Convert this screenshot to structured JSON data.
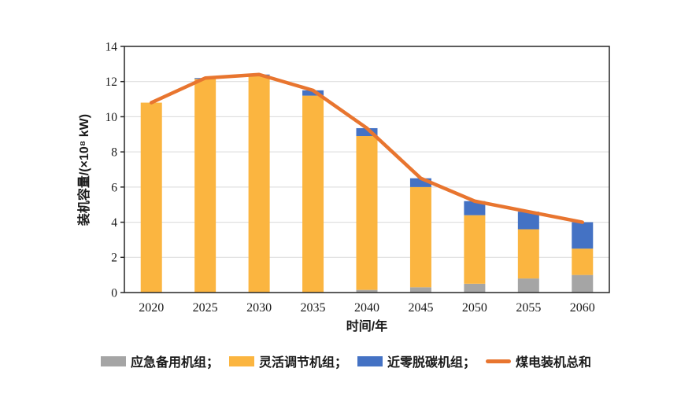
{
  "figure": {
    "background": "#ffffff",
    "frame_color": "#262626",
    "grid_color": "#d9d9d9",
    "text_color": "#1a1a1a"
  },
  "legend": {
    "position": "bottom-center",
    "items": [
      {
        "label": "应急备用机组；",
        "marker": "square",
        "color": "#A5A5A5"
      },
      {
        "label": "灵活调节机组；",
        "marker": "square",
        "color": "#FBB540"
      },
      {
        "label": "近零脱碳机组；",
        "marker": "square",
        "color": "#4472C4"
      },
      {
        "label": "煤电装机总和",
        "marker": "line",
        "color": "#E8752F"
      }
    ]
  },
  "chart_data": {
    "type": "bar",
    "subtype": "stacked-bars-with-total-line",
    "title": "",
    "xlabel": "时间/年",
    "ylabel": "装机容量/(×10⁸ kW)",
    "categories": [
      "2020",
      "2025",
      "2030",
      "2035",
      "2040",
      "2045",
      "2050",
      "2055",
      "2060"
    ],
    "series": [
      {
        "name": "应急备用机组",
        "type": "bar",
        "color": "#A5A5A5",
        "values": [
          0,
          0,
          0,
          0,
          0.15,
          0.3,
          0.5,
          0.8,
          1.0
        ]
      },
      {
        "name": "灵活调节机组",
        "type": "bar",
        "color": "#FBB540",
        "values": [
          10.8,
          12.15,
          12.35,
          11.2,
          8.75,
          5.7,
          3.9,
          2.8,
          1.5
        ]
      },
      {
        "name": "近零脱碳机组",
        "type": "bar",
        "color": "#4472C4",
        "values": [
          0,
          0.05,
          0.05,
          0.3,
          0.45,
          0.5,
          0.8,
          1.0,
          1.5
        ]
      },
      {
        "name": "煤电装机总和",
        "type": "line",
        "color": "#E8752F",
        "values": [
          10.8,
          12.2,
          12.4,
          11.5,
          9.35,
          6.5,
          5.2,
          4.6,
          4.0
        ]
      }
    ],
    "stacked": true,
    "ylim": [
      0,
      14
    ],
    "yticks": [
      0,
      2,
      4,
      6,
      8,
      10,
      12,
      14
    ],
    "grid": "horizontal",
    "legend_position": "bottom"
  }
}
